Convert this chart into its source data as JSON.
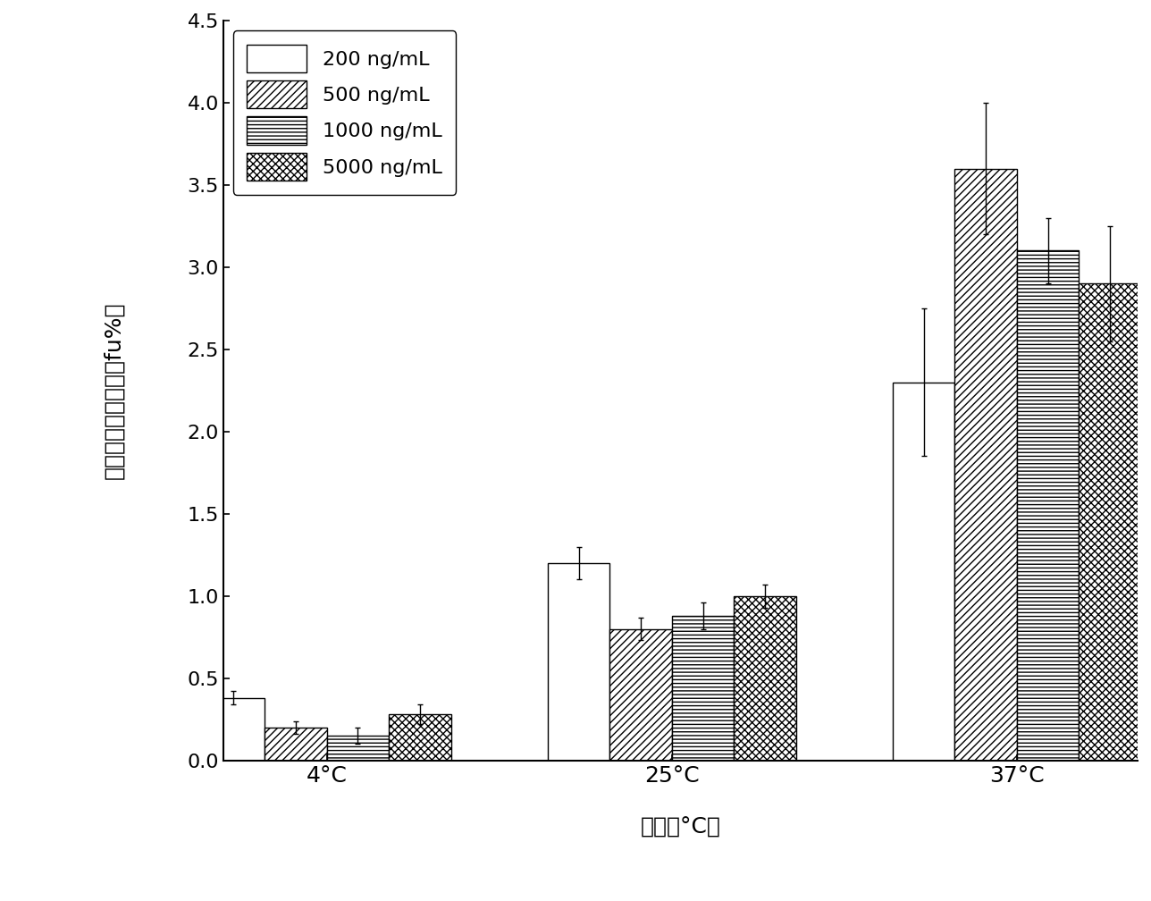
{
  "categories": [
    "4°C",
    "25°C",
    "37°C"
  ],
  "legend_labels": [
    "200 ng/mL",
    "500 ng/mL",
    "1000 ng/mL",
    "5000 ng/mL"
  ],
  "values": [
    [
      0.38,
      1.2,
      2.3
    ],
    [
      0.2,
      0.8,
      3.6
    ],
    [
      0.15,
      0.88,
      3.1
    ],
    [
      0.28,
      1.0,
      2.9
    ]
  ],
  "errors": [
    [
      0.04,
      0.1,
      0.45
    ],
    [
      0.04,
      0.07,
      0.4
    ],
    [
      0.05,
      0.08,
      0.2
    ],
    [
      0.06,
      0.07,
      0.35
    ]
  ],
  "ylabel_lines": [
    "多西他赛游离分数（fu%）"
  ],
  "ylabel_en": "多西他赛游离分数（fu%）",
  "xlabel": "温度（°C）",
  "ylim": [
    0.0,
    4.5
  ],
  "yticks": [
    0.0,
    0.5,
    1.0,
    1.5,
    2.0,
    2.5,
    3.0,
    3.5,
    4.0,
    4.5
  ],
  "bar_width": 0.18,
  "group_positions": [
    0.3,
    1.3,
    2.3
  ],
  "background_color": "#ffffff",
  "edge_color": "#000000",
  "hatch_patterns": [
    "",
    "////",
    "----",
    "xxxx"
  ],
  "face_colors": [
    "white",
    "white",
    "white",
    "white"
  ]
}
